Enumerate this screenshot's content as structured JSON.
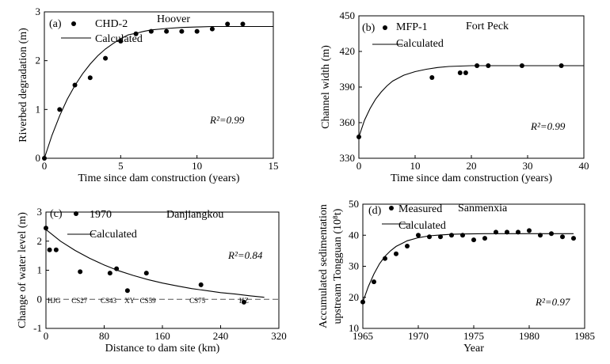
{
  "chart_data": [
    {
      "panel": "(a)",
      "title": "Hoover",
      "type": "scatter+line",
      "xlabel": "Time since dam construction (years)",
      "ylabel": "Riverbed degradation (m)",
      "xlim": [
        0,
        15
      ],
      "ylim": [
        0,
        3
      ],
      "xticks": [
        0,
        5,
        10,
        15
      ],
      "yticks": [
        0,
        1,
        2,
        3
      ],
      "legend": [
        "CHD-2",
        "Calculated"
      ],
      "r2": "R²=0.99",
      "measured": {
        "name": "CHD-2",
        "x": [
          0,
          1,
          2,
          3,
          4,
          5,
          6,
          7,
          8,
          9,
          10,
          11,
          12,
          13
        ],
        "y": [
          0,
          1.0,
          1.5,
          1.65,
          2.05,
          2.4,
          2.55,
          2.6,
          2.6,
          2.6,
          2.6,
          2.65,
          2.75,
          2.75
        ]
      },
      "calculated": {
        "name": "Calculated",
        "x": [
          0,
          0.5,
          1,
          1.5,
          2,
          2.5,
          3,
          3.5,
          4,
          4.5,
          5,
          5.5,
          6,
          6.5,
          7,
          8,
          9,
          10,
          11,
          12,
          13,
          14,
          15
        ],
        "y": [
          0,
          0.47,
          0.87,
          1.21,
          1.49,
          1.73,
          1.93,
          2.1,
          2.24,
          2.35,
          2.45,
          2.53,
          2.56,
          2.6,
          2.63,
          2.66,
          2.68,
          2.69,
          2.7,
          2.7,
          2.7,
          2.7,
          2.7
        ]
      }
    },
    {
      "panel": "(b)",
      "title": "Fort Peck",
      "type": "scatter+line",
      "xlabel": "Time since dam construction (years)",
      "ylabel": "Channel width (m)",
      "xlim": [
        0,
        40
      ],
      "ylim": [
        330,
        450
      ],
      "xticks": [
        0,
        10,
        20,
        30,
        40
      ],
      "yticks": [
        330,
        360,
        390,
        420,
        450
      ],
      "legend": [
        "MFP-1",
        "Calculated"
      ],
      "r2": "R²=0.99",
      "measured": {
        "name": "MFP-1",
        "x": [
          0,
          13,
          18,
          19,
          21,
          23,
          29,
          36
        ],
        "y": [
          348,
          398,
          402,
          402,
          408,
          408,
          408,
          408
        ]
      },
      "calculated": {
        "name": "Calculated",
        "x": [
          0,
          1,
          2,
          3,
          4,
          5,
          6,
          8,
          10,
          12,
          14,
          16,
          18,
          20,
          25,
          30,
          35,
          40
        ],
        "y": [
          348,
          362,
          372,
          380,
          386,
          391,
          395,
          400,
          403,
          405,
          406.5,
          407.3,
          407.7,
          408,
          408,
          408,
          408,
          408
        ]
      }
    },
    {
      "panel": "(c)",
      "title": "Danjiangkou",
      "type": "scatter+line",
      "xlabel": "Distance to dam site (km)",
      "ylabel": "Change of water level (m)",
      "xlim": [
        0,
        320
      ],
      "ylim": [
        -1,
        3
      ],
      "xticks": [
        0,
        80,
        160,
        240,
        320
      ],
      "yticks": [
        -1,
        0,
        1,
        2,
        3
      ],
      "legend": [
        "1970",
        "Calculated"
      ],
      "r2": "R²=0.84",
      "measured": {
        "name": "1970",
        "x": [
          0,
          5,
          14,
          47,
          88,
          97,
          112,
          138,
          213,
          272
        ],
        "y": [
          2.45,
          1.7,
          1.7,
          0.95,
          0.9,
          1.05,
          0.3,
          0.9,
          0.5,
          -0.1
        ]
      },
      "calculated": {
        "name": "Calculated",
        "x": [
          0,
          20,
          40,
          60,
          80,
          100,
          120,
          140,
          160,
          180,
          200,
          220,
          240,
          260,
          280,
          300
        ],
        "y": [
          2.4,
          2.0,
          1.68,
          1.41,
          1.18,
          0.98,
          0.82,
          0.68,
          0.56,
          0.46,
          0.37,
          0.3,
          0.23,
          0.18,
          0.12,
          0.07
        ]
      },
      "zero_line": 0,
      "station_labels": [
        {
          "text": "HJG",
          "x": 0
        },
        {
          "text": "CS27",
          "x": 46
        },
        {
          "text": "CS43",
          "x": 86
        },
        {
          "text": "XY",
          "x": 115
        },
        {
          "text": "CS59",
          "x": 140
        },
        {
          "text": "CS75",
          "x": 208
        },
        {
          "text": "HZ",
          "x": 272
        }
      ]
    },
    {
      "panel": "(d)",
      "title": "Sanmenxia",
      "type": "scatter+line",
      "xlabel": "Year",
      "ylabel": "Accumulated sedimentation upstream Tongguan (10⁸t)",
      "ylabel_line1": "Accumulated sedimentation",
      "ylabel_line2": "upstream Tongguan (10⁸t)",
      "xlim": [
        1965,
        1985
      ],
      "ylim": [
        10,
        50
      ],
      "xticks": [
        1965,
        1970,
        1975,
        1980,
        1985
      ],
      "yticks": [
        10,
        20,
        30,
        40,
        50
      ],
      "legend": [
        "Measured",
        "Calculated"
      ],
      "r2": "R²=0.97",
      "measured": {
        "name": "Measured",
        "x": [
          1965,
          1966,
          1967,
          1968,
          1969,
          1970,
          1971,
          1972,
          1973,
          1974,
          1975,
          1976,
          1977,
          1978,
          1979,
          1980,
          1981,
          1982,
          1983,
          1984
        ],
        "y": [
          18.5,
          25.0,
          32.5,
          34.0,
          36.5,
          40.0,
          39.5,
          39.5,
          40.0,
          40.0,
          38.5,
          39.0,
          41.0,
          41.0,
          41.0,
          41.5,
          40.0,
          40.5,
          39.5,
          39.0
        ]
      },
      "calculated": {
        "name": "Calculated",
        "x": [
          1965,
          1965.5,
          1966,
          1966.5,
          1967,
          1967.5,
          1968,
          1969,
          1970,
          1971,
          1972,
          1973,
          1974,
          1976,
          1978,
          1980,
          1982,
          1984
        ],
        "y": [
          18.5,
          23.5,
          27.5,
          30.8,
          33.2,
          35.0,
          36.4,
          38.2,
          39.2,
          39.8,
          40.1,
          40.3,
          40.4,
          40.5,
          40.5,
          40.5,
          40.5,
          40.5
        ]
      }
    }
  ]
}
